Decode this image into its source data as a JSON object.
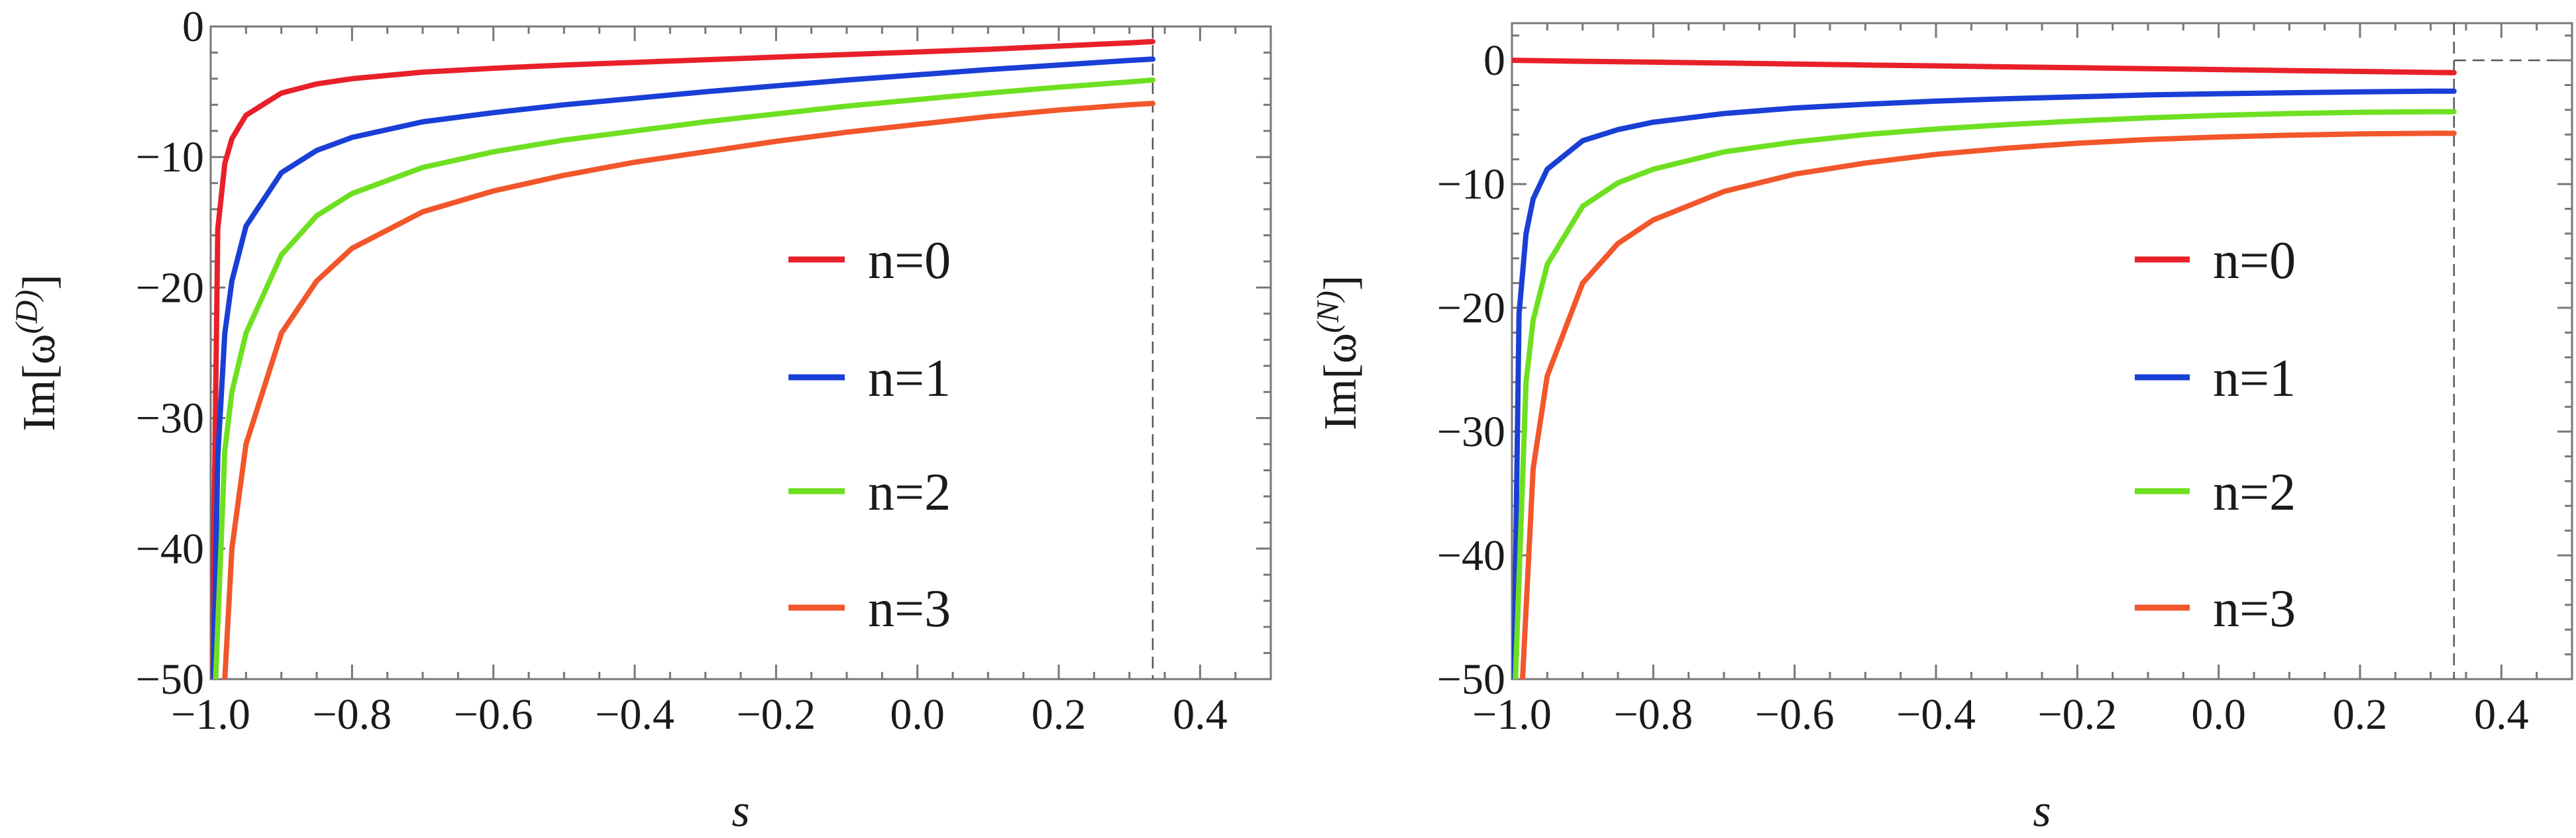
{
  "chart_data": [
    {
      "type": "line",
      "panel": "left",
      "title": "",
      "xlabel": "s",
      "ylabel": "Im[ω^(D)]",
      "ylabel_main": "Im[ω",
      "ylabel_sup": "(D)",
      "ylabel_close": "]",
      "xlim": [
        -1.0,
        0.5
      ],
      "ylim": [
        -50,
        0
      ],
      "xticks": [
        -1.0,
        -0.8,
        -0.6,
        -0.4,
        -0.2,
        0.0,
        0.2,
        0.4
      ],
      "xtick_labels": [
        "−1.0",
        "−0.8",
        "−0.6",
        "−0.4",
        "−0.2",
        "0.0",
        "0.2",
        "0.4"
      ],
      "yticks": [
        0,
        -10,
        -20,
        -30,
        -40,
        -50
      ],
      "ytick_labels": [
        "0",
        "−10",
        "−20",
        "−30",
        "−40",
        "−50"
      ],
      "reference_lines": [
        {
          "orientation": "vertical",
          "x": 0.333,
          "style": "dashed"
        }
      ],
      "legend": {
        "position": "right"
      },
      "series": [
        {
          "name": "n=0",
          "color": "#e8202a",
          "x": [
            -0.998,
            -0.99,
            -0.98,
            -0.97,
            -0.95,
            -0.9,
            -0.85,
            -0.8,
            -0.7,
            -0.6,
            -0.5,
            -0.4,
            -0.3,
            -0.2,
            -0.1,
            0.0,
            0.1,
            0.2,
            0.3,
            0.333
          ],
          "y": [
            -50,
            -15.5,
            -10.5,
            -8.6,
            -6.8,
            -5.1,
            -4.4,
            -4.0,
            -3.5,
            -3.2,
            -2.95,
            -2.75,
            -2.55,
            -2.35,
            -2.15,
            -1.95,
            -1.75,
            -1.5,
            -1.25,
            -1.15
          ]
        },
        {
          "name": "n=1",
          "color": "#1a3fd6",
          "x": [
            -0.996,
            -0.99,
            -0.98,
            -0.97,
            -0.95,
            -0.9,
            -0.85,
            -0.8,
            -0.7,
            -0.6,
            -0.5,
            -0.4,
            -0.3,
            -0.2,
            -0.1,
            0.0,
            0.1,
            0.2,
            0.3,
            0.333
          ],
          "y": [
            -50,
            -33,
            -23.5,
            -19.5,
            -15.3,
            -11.2,
            -9.5,
            -8.5,
            -7.3,
            -6.6,
            -6.0,
            -5.5,
            -5.0,
            -4.55,
            -4.1,
            -3.7,
            -3.3,
            -2.95,
            -2.6,
            -2.5
          ]
        },
        {
          "name": "n=2",
          "color": "#6ee021",
          "x": [
            -0.993,
            -0.98,
            -0.97,
            -0.95,
            -0.9,
            -0.85,
            -0.8,
            -0.7,
            -0.6,
            -0.5,
            -0.4,
            -0.3,
            -0.2,
            -0.1,
            0.0,
            0.1,
            0.2,
            0.3,
            0.333
          ],
          "y": [
            -50,
            -32.5,
            -28.0,
            -23.5,
            -17.5,
            -14.5,
            -12.8,
            -10.8,
            -9.6,
            -8.7,
            -8.0,
            -7.3,
            -6.7,
            -6.1,
            -5.6,
            -5.1,
            -4.65,
            -4.25,
            -4.1
          ]
        },
        {
          "name": "n=3",
          "color": "#f2562b",
          "x": [
            -0.98,
            -0.97,
            -0.95,
            -0.9,
            -0.85,
            -0.8,
            -0.7,
            -0.6,
            -0.5,
            -0.4,
            -0.3,
            -0.2,
            -0.1,
            0.0,
            0.1,
            0.2,
            0.3,
            0.333
          ],
          "y": [
            -50,
            -40.0,
            -32.0,
            -23.5,
            -19.5,
            -17.0,
            -14.2,
            -12.6,
            -11.4,
            -10.4,
            -9.6,
            -8.8,
            -8.1,
            -7.5,
            -6.9,
            -6.4,
            -6.0,
            -5.9
          ]
        }
      ]
    },
    {
      "type": "line",
      "panel": "right",
      "title": "",
      "xlabel": "s",
      "ylabel": "Im[ω^(N)]",
      "ylabel_main": "Im[ω",
      "ylabel_sup": "(N)",
      "ylabel_close": "]",
      "xlim": [
        -1.0,
        0.5
      ],
      "ylim": [
        -50,
        3
      ],
      "xticks": [
        -1.0,
        -0.8,
        -0.6,
        -0.4,
        -0.2,
        0.0,
        0.2,
        0.4
      ],
      "xtick_labels": [
        "−1.0",
        "−0.8",
        "−0.6",
        "−0.4",
        "−0.2",
        "0.0",
        "0.2",
        "0.4"
      ],
      "yticks": [
        0,
        -10,
        -20,
        -30,
        -40,
        -50
      ],
      "ytick_labels": [
        "0",
        "−10",
        "−20",
        "−30",
        "−40",
        "−50"
      ],
      "reference_lines": [
        {
          "orientation": "vertical",
          "x": 0.333,
          "style": "dashed"
        },
        {
          "orientation": "horizontal",
          "y": 0,
          "style": "dashed"
        }
      ],
      "legend": {
        "position": "right"
      },
      "series": [
        {
          "name": "n=0",
          "color": "#e8202a",
          "x": [
            -1.0,
            -0.9,
            -0.8,
            -0.7,
            -0.6,
            -0.5,
            -0.4,
            -0.3,
            -0.2,
            -0.1,
            0.0,
            0.1,
            0.2,
            0.3,
            0.333
          ],
          "y": [
            0.0,
            -0.08,
            -0.15,
            -0.22,
            -0.3,
            -0.38,
            -0.45,
            -0.53,
            -0.6,
            -0.68,
            -0.75,
            -0.83,
            -0.9,
            -0.98,
            -1.0
          ]
        },
        {
          "name": "n=1",
          "color": "#1a3fd6",
          "x": [
            -0.997,
            -0.99,
            -0.98,
            -0.97,
            -0.95,
            -0.9,
            -0.85,
            -0.8,
            -0.7,
            -0.6,
            -0.5,
            -0.4,
            -0.3,
            -0.2,
            -0.1,
            0.0,
            0.1,
            0.2,
            0.3,
            0.333
          ],
          "y": [
            -50,
            -20.5,
            -14.0,
            -11.2,
            -8.8,
            -6.5,
            -5.6,
            -5.0,
            -4.3,
            -3.85,
            -3.55,
            -3.3,
            -3.1,
            -2.95,
            -2.8,
            -2.7,
            -2.62,
            -2.55,
            -2.5,
            -2.5
          ]
        },
        {
          "name": "n=2",
          "color": "#6ee021",
          "x": [
            -0.995,
            -0.98,
            -0.97,
            -0.95,
            -0.9,
            -0.85,
            -0.8,
            -0.7,
            -0.6,
            -0.5,
            -0.4,
            -0.3,
            -0.2,
            -0.1,
            0.0,
            0.1,
            0.2,
            0.3,
            0.333
          ],
          "y": [
            -50,
            -26.0,
            -21.0,
            -16.5,
            -11.8,
            -9.9,
            -8.8,
            -7.4,
            -6.6,
            -6.0,
            -5.55,
            -5.2,
            -4.9,
            -4.65,
            -4.45,
            -4.3,
            -4.2,
            -4.15,
            -4.15
          ]
        },
        {
          "name": "n=3",
          "color": "#f2562b",
          "x": [
            -0.985,
            -0.97,
            -0.95,
            -0.9,
            -0.85,
            -0.8,
            -0.7,
            -0.6,
            -0.5,
            -0.4,
            -0.3,
            -0.2,
            -0.1,
            0.0,
            0.1,
            0.2,
            0.3,
            0.333
          ],
          "y": [
            -50,
            -33.0,
            -25.5,
            -18.0,
            -14.8,
            -12.9,
            -10.6,
            -9.2,
            -8.3,
            -7.6,
            -7.1,
            -6.7,
            -6.4,
            -6.2,
            -6.05,
            -5.95,
            -5.9,
            -5.9
          ]
        }
      ]
    }
  ]
}
